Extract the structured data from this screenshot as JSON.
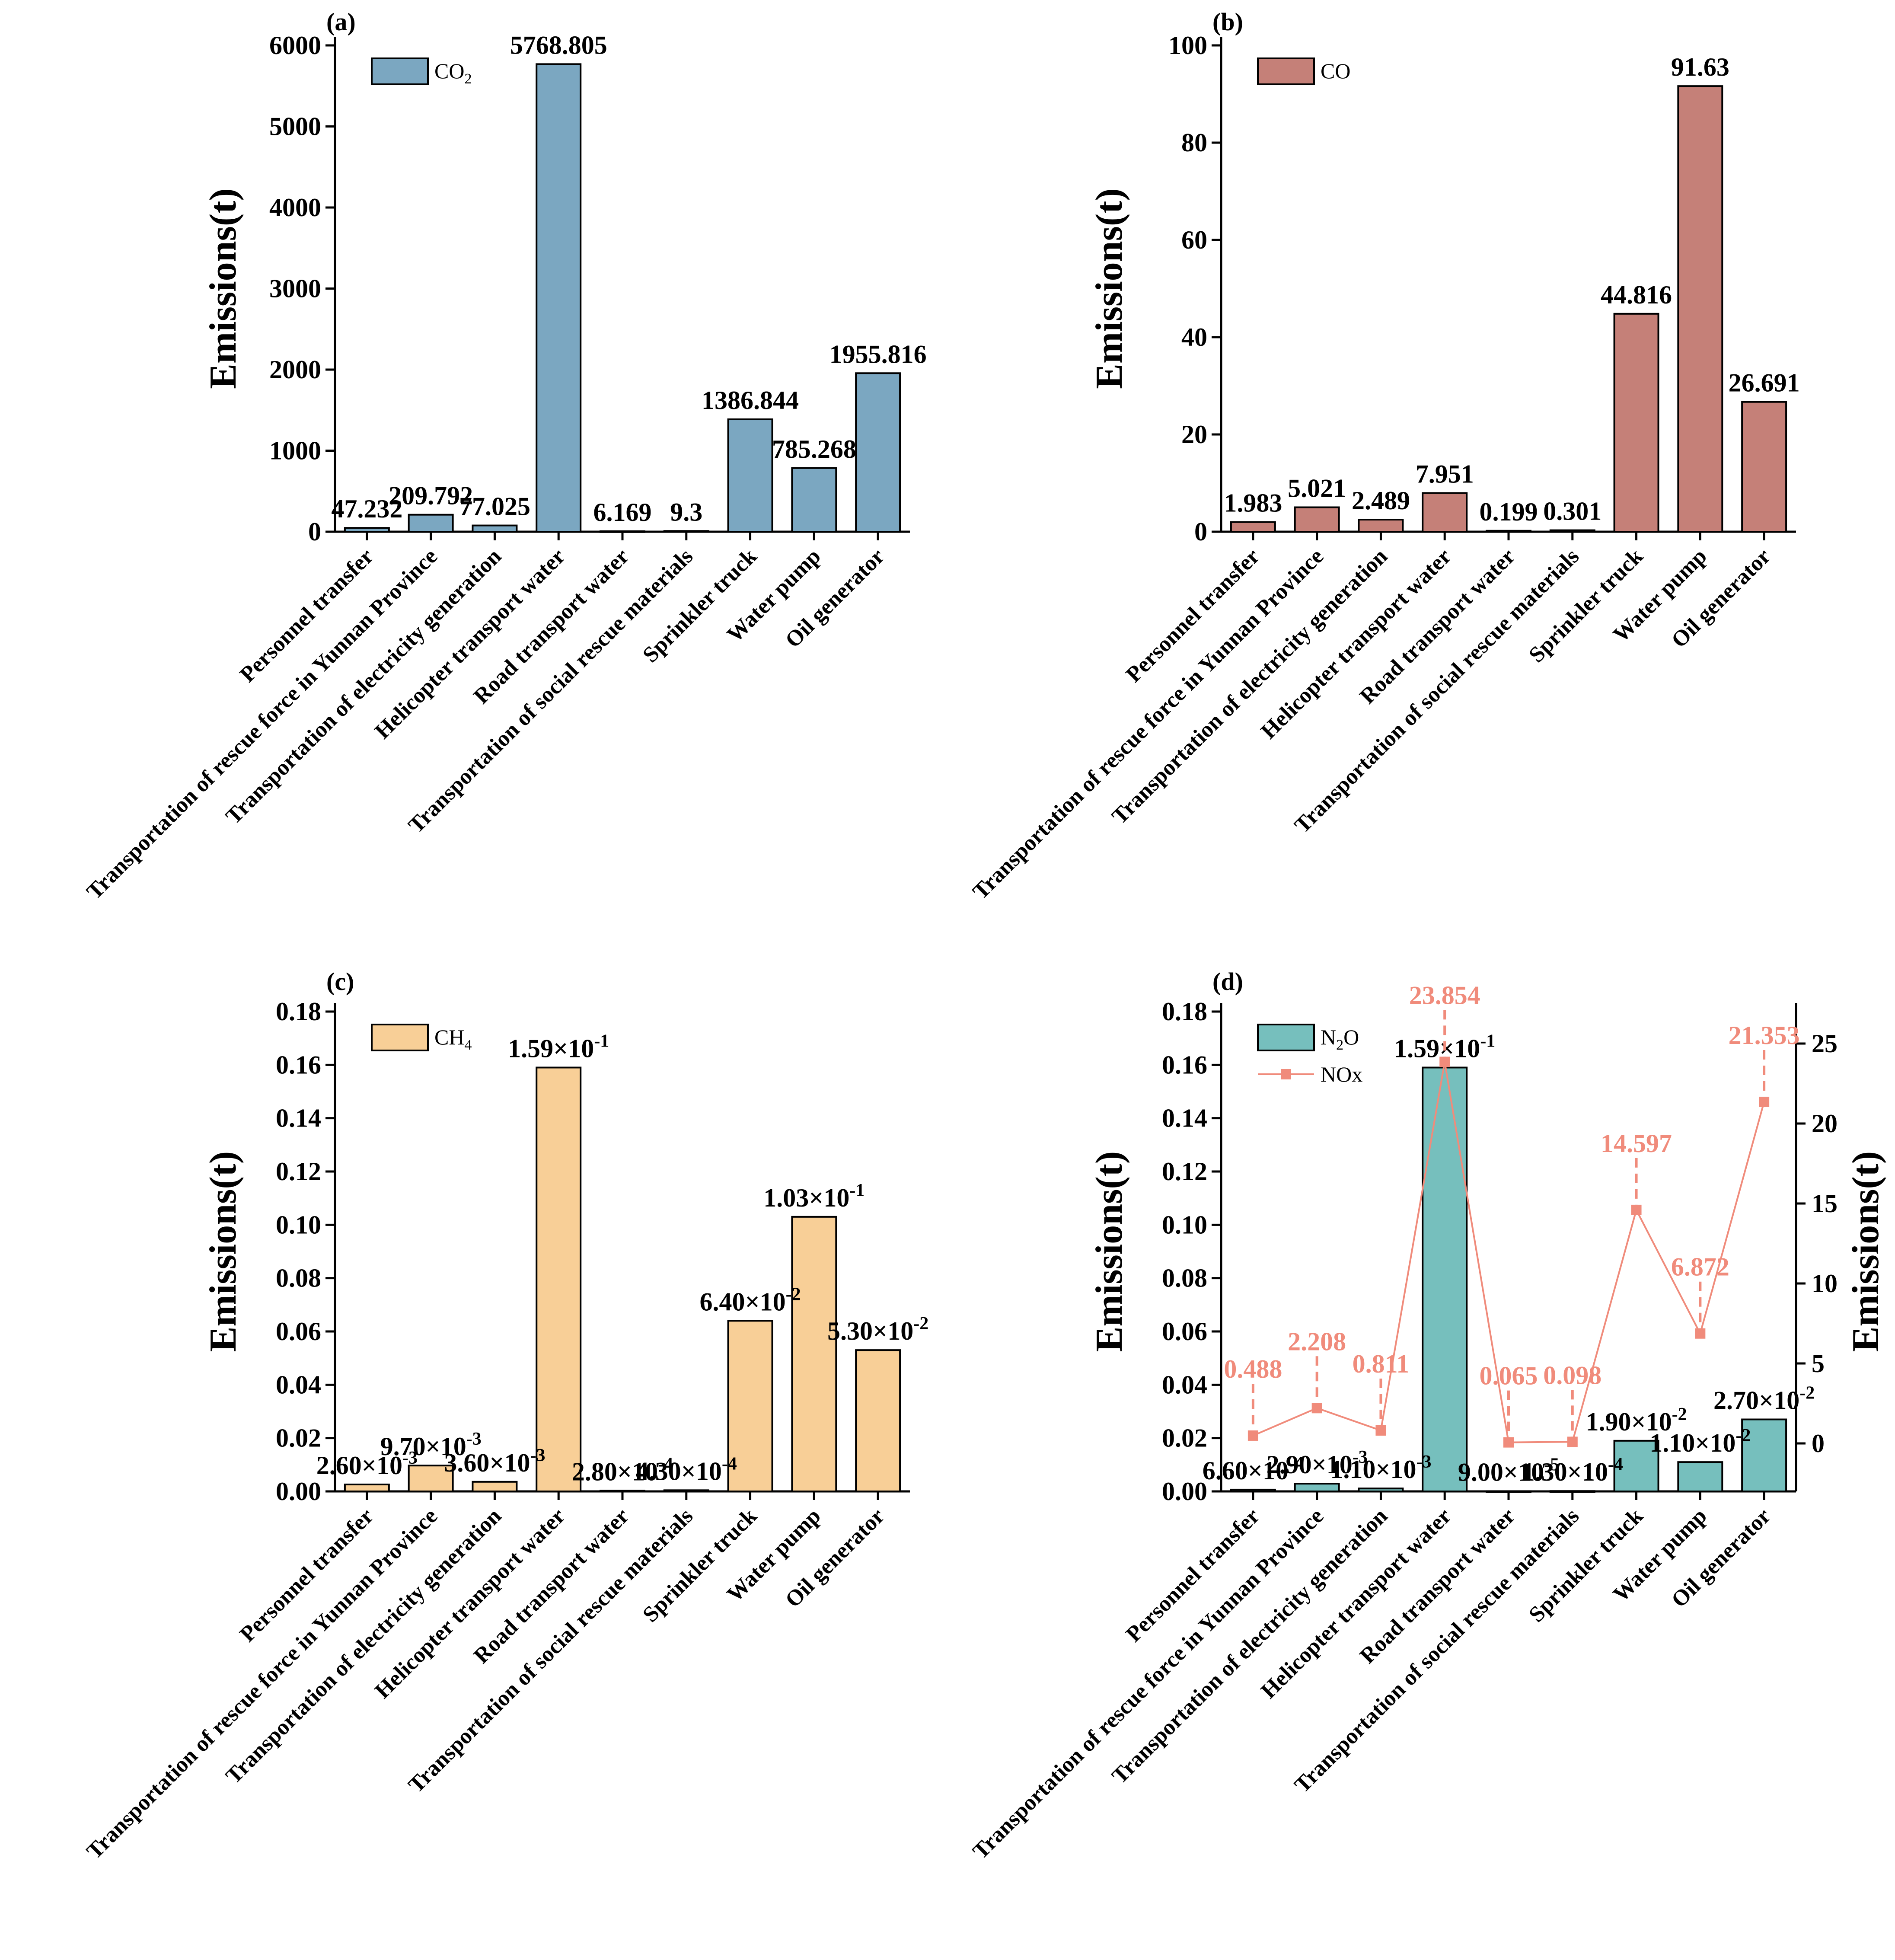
{
  "chart_data": [
    {
      "panel": "(a)",
      "type": "bar",
      "categories": [
        "Personnel transfer",
        "Transportation of rescue force in Yunnan Province",
        "Transportation of electricity generation",
        "Helicopter transport water",
        "Road transport water",
        "Transportation of social rescue materials",
        "Sprinkler truck",
        "Water pump",
        "Oil generator"
      ],
      "series": [
        {
          "name": "CO2",
          "legend_main": "CO",
          "legend_sub": "2",
          "color": "#7BA7C1",
          "values": [
            47.232,
            209.792,
            77.025,
            5768.805,
            6.169,
            9.3,
            1386.844,
            785.268,
            1955.816
          ],
          "labels": [
            {
              "m": "47.232",
              "e": ""
            },
            {
              "m": "209.792",
              "e": ""
            },
            {
              "m": "77.025",
              "e": ""
            },
            {
              "m": "5768.805",
              "e": ""
            },
            {
              "m": "6.169",
              "e": ""
            },
            {
              "m": "9.3",
              "e": ""
            },
            {
              "m": "1386.844",
              "e": ""
            },
            {
              "m": "785.268",
              "e": ""
            },
            {
              "m": "1955.816",
              "e": ""
            }
          ]
        }
      ],
      "ylabel": "Emissions(t)",
      "ylim": [
        0,
        6000
      ],
      "yticks": [
        "0",
        "1000",
        "2000",
        "3000",
        "4000",
        "5000",
        "6000"
      ],
      "legend_position": "top-left"
    },
    {
      "panel": "(b)",
      "type": "bar",
      "categories": [
        "Personnel transfer",
        "Transportation of rescue force in Yunnan Province",
        "Transportation of electricity generation",
        "Helicopter transport water",
        "Road transport water",
        "Transportation of social rescue materials",
        "Sprinkler truck",
        "Water pump",
        "Oil generator"
      ],
      "series": [
        {
          "name": "CO",
          "legend_main": "CO",
          "legend_sub": "",
          "color": "#C58078",
          "values": [
            1.983,
            5.021,
            2.489,
            7.951,
            0.199,
            0.301,
            44.816,
            91.63,
            26.691
          ],
          "labels": [
            {
              "m": "1.983",
              "e": ""
            },
            {
              "m": "5.021",
              "e": ""
            },
            {
              "m": "2.489",
              "e": ""
            },
            {
              "m": "7.951",
              "e": ""
            },
            {
              "m": "0.199",
              "e": ""
            },
            {
              "m": "0.301",
              "e": ""
            },
            {
              "m": "44.816",
              "e": ""
            },
            {
              "m": "91.63",
              "e": ""
            },
            {
              "m": "26.691",
              "e": ""
            }
          ]
        }
      ],
      "ylabel": "Emissions(t)",
      "ylim": [
        0,
        100
      ],
      "yticks": [
        "0",
        "20",
        "40",
        "60",
        "80",
        "100"
      ],
      "legend_position": "top-left"
    },
    {
      "panel": "(c)",
      "type": "bar",
      "categories": [
        "Personnel transfer",
        "Transportation of rescue force in Yunnan Province",
        "Transportation of electricity generation",
        "Helicopter transport water",
        "Road transport water",
        "Transportation of social rescue materials",
        "Sprinkler truck",
        "Water pump",
        "Oil generator"
      ],
      "series": [
        {
          "name": "CH4",
          "legend_main": "CH",
          "legend_sub": "4",
          "color": "#F8CF97",
          "values": [
            0.0026,
            0.0097,
            0.0036,
            0.159,
            0.00028,
            0.00043,
            0.064,
            0.103,
            0.053
          ],
          "labels": [
            {
              "m": "2.60×10",
              "e": "-3"
            },
            {
              "m": "9.70×10",
              "e": "-3"
            },
            {
              "m": "3.60×10",
              "e": "-3"
            },
            {
              "m": "1.59×10",
              "e": "-1"
            },
            {
              "m": "2.80×10",
              "e": "-4"
            },
            {
              "m": "4.30×10",
              "e": "-4"
            },
            {
              "m": "6.40×10",
              "e": "-2"
            },
            {
              "m": "1.03×10",
              "e": "-1"
            },
            {
              "m": "5.30×10",
              "e": "-2"
            }
          ]
        }
      ],
      "ylabel": "Emissions(t)",
      "ylim": [
        0,
        0.18
      ],
      "yticks": [
        "0.00",
        "0.02",
        "0.04",
        "0.06",
        "0.08",
        "0.10",
        "0.12",
        "0.14",
        "0.16",
        "0.18"
      ],
      "legend_position": "top-left"
    },
    {
      "panel": "(d)",
      "type": "bar+line",
      "categories": [
        "Personnel transfer",
        "Transportation of rescue force in Yunnan Province",
        "Transportation of electricity generation",
        "Helicopter transport water",
        "Road transport water",
        "Transportation of social rescue materials",
        "Sprinkler truck",
        "Water pump",
        "Oil generator"
      ],
      "series": [
        {
          "name": "N2O",
          "legend_main": "N",
          "legend_sub": "2",
          "legend_tail": "O",
          "color": "#76BFBD",
          "values": [
            0.00066,
            0.0029,
            0.0011,
            0.159,
            9e-05,
            0.00013,
            0.019,
            0.011,
            0.027
          ],
          "labels": [
            {
              "m": "6.60×10",
              "e": "-4"
            },
            {
              "m": "2.90×10",
              "e": "-3"
            },
            {
              "m": "1.10×10",
              "e": "-3"
            },
            {
              "m": "1.59×10",
              "e": "-1"
            },
            {
              "m": "9.00×10",
              "e": "-5"
            },
            {
              "m": "1.30×10",
              "e": "-4"
            },
            {
              "m": "1.90×10",
              "e": "-2"
            },
            {
              "m": "1.10×10",
              "e": "-2"
            },
            {
              "m": "2.70×10",
              "e": "-2"
            }
          ]
        },
        {
          "name": "NOx",
          "legend_main": "NOx",
          "axis": "right",
          "color": "#F08B7B",
          "values": [
            0.488,
            2.208,
            0.811,
            23.854,
            0.065,
            0.098,
            14.597,
            6.872,
            21.353
          ],
          "labels": [
            "0.488",
            "2.208",
            "0.811",
            "23.854",
            "0.065",
            "0.098",
            "14.597",
            "6.872",
            "21.353"
          ]
        }
      ],
      "ylabel": "Emissions(t)",
      "ylabel_right": "Emissions(t)",
      "ylim": [
        0,
        0.18
      ],
      "yticks": [
        "0.00",
        "0.02",
        "0.04",
        "0.06",
        "0.08",
        "0.10",
        "0.12",
        "0.14",
        "0.16",
        "0.18"
      ],
      "ylim_right": [
        -3,
        27
      ],
      "yticks_right": [
        "0",
        "5",
        "10",
        "15",
        "20",
        "25"
      ],
      "legend_position": "top-left"
    }
  ]
}
